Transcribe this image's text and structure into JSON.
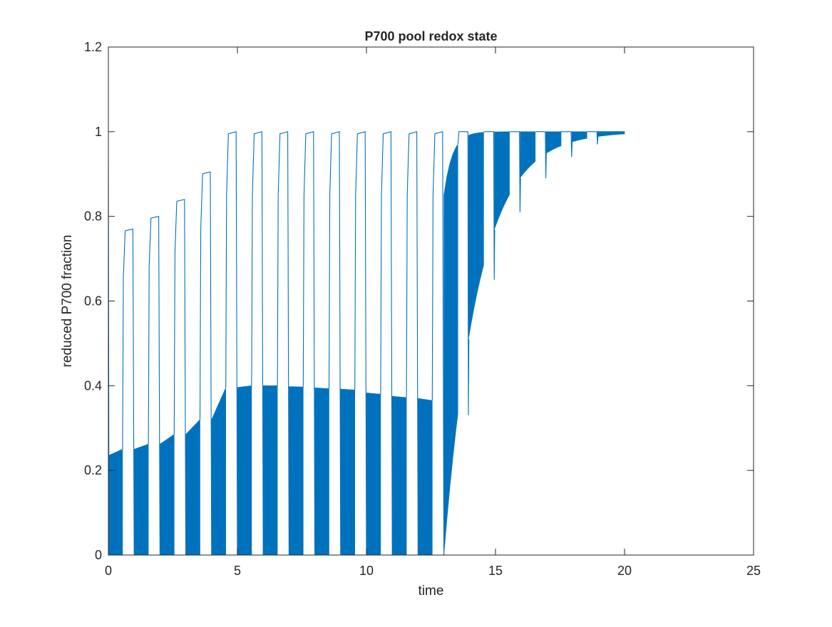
{
  "chart_data": {
    "type": "line",
    "title": "P700 pool redox state",
    "xlabel": "time",
    "ylabel": "reduced P700 fraction",
    "xlim": [
      0,
      25
    ],
    "ylim": [
      0,
      1.2
    ],
    "xticks": [
      0,
      5,
      10,
      15,
      20,
      25
    ],
    "yticks": [
      0,
      0.2,
      0.4,
      0.6,
      0.8,
      1,
      1.2
    ],
    "xtick_labels": [
      "0",
      "5",
      "10",
      "15",
      "20",
      "25"
    ],
    "ytick_labels": [
      "0",
      "0.2",
      "0.4",
      "0.6",
      "0.8",
      "1",
      "1.2"
    ],
    "grid": false,
    "legend": "none",
    "line_color": "#0072BD",
    "series": [
      {
        "cycles": [
          {
            "pulse_start": 0.6,
            "pulse_end": 0.95,
            "dark_start_level": 0.235,
            "dark_end_level": 0.25,
            "pulse_plateau": 0.77,
            "dip_min": 0.0
          },
          {
            "pulse_start": 1.6,
            "pulse_end": 1.95,
            "dark_start_level": 0.25,
            "dark_end_level": 0.262,
            "pulse_plateau": 0.8,
            "dip_min": 0.0
          },
          {
            "pulse_start": 2.6,
            "pulse_end": 2.95,
            "dark_start_level": 0.262,
            "dark_end_level": 0.285,
            "pulse_plateau": 0.84,
            "dip_min": 0.0
          },
          {
            "pulse_start": 3.6,
            "pulse_end": 3.95,
            "dark_start_level": 0.285,
            "dark_end_level": 0.32,
            "pulse_plateau": 0.905,
            "dip_min": 0.0
          },
          {
            "pulse_start": 4.6,
            "pulse_end": 4.95,
            "dark_start_level": 0.32,
            "dark_end_level": 0.395,
            "pulse_plateau": 1.0,
            "dip_min": 0.0
          },
          {
            "pulse_start": 5.6,
            "pulse_end": 5.95,
            "dark_start_level": 0.396,
            "dark_end_level": 0.4,
            "pulse_plateau": 1.0,
            "dip_min": 0.0
          },
          {
            "pulse_start": 6.6,
            "pulse_end": 6.95,
            "dark_start_level": 0.4,
            "dark_end_level": 0.4,
            "pulse_plateau": 1.0,
            "dip_min": 0.0
          },
          {
            "pulse_start": 7.6,
            "pulse_end": 7.95,
            "dark_start_level": 0.398,
            "dark_end_level": 0.397,
            "pulse_plateau": 1.0,
            "dip_min": 0.0
          },
          {
            "pulse_start": 8.6,
            "pulse_end": 8.95,
            "dark_start_level": 0.395,
            "dark_end_level": 0.393,
            "pulse_plateau": 1.0,
            "dip_min": 0.0
          },
          {
            "pulse_start": 9.6,
            "pulse_end": 9.95,
            "dark_start_level": 0.392,
            "dark_end_level": 0.39,
            "pulse_plateau": 1.0,
            "dip_min": 0.0
          },
          {
            "pulse_start": 10.6,
            "pulse_end": 10.95,
            "dark_start_level": 0.383,
            "dark_end_level": 0.38,
            "pulse_plateau": 1.0,
            "dip_min": 0.0
          },
          {
            "pulse_start": 11.6,
            "pulse_end": 11.95,
            "dark_start_level": 0.375,
            "dark_end_level": 0.372,
            "pulse_plateau": 1.0,
            "dip_min": 0.0
          },
          {
            "pulse_start": 12.6,
            "pulse_end": 12.95,
            "dark_start_level": 0.37,
            "dark_end_level": 0.365,
            "pulse_plateau": 1.0,
            "dip_min": 0.0
          }
        ],
        "recovery": {
          "start": 13.0,
          "end": 20.0,
          "start_level": 0.0,
          "end_level": 1.0
        },
        "late_pulses": [
          {
            "t": 13.6,
            "plateau": 1.0,
            "dip_min": 0.33
          },
          {
            "t": 14.6,
            "plateau": 1.0,
            "dip_min": 0.65
          },
          {
            "t": 15.6,
            "plateau": 1.0,
            "dip_min": 0.81
          },
          {
            "t": 16.6,
            "plateau": 1.0,
            "dip_min": 0.89
          },
          {
            "t": 17.6,
            "plateau": 1.0,
            "dip_min": 0.94
          },
          {
            "t": 18.6,
            "plateau": 1.0,
            "dip_min": 0.97
          }
        ],
        "initial_value": 0.93
      }
    ]
  }
}
